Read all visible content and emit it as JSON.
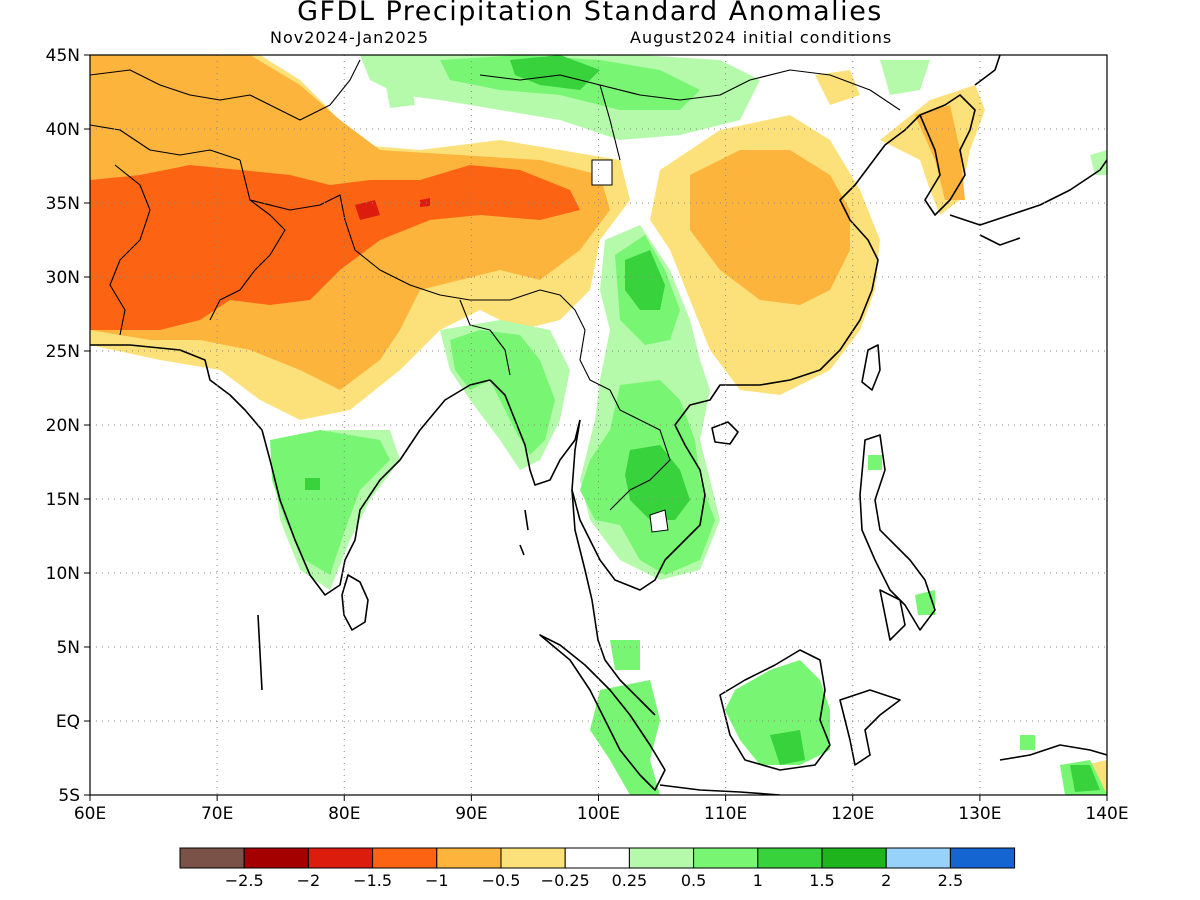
{
  "title": "GFDL Precipitation Standard Anomalies",
  "subtitle_left": "Nov2024-Jan2025",
  "subtitle_right": "August2024 initial conditions",
  "lat_labels": [
    "45N",
    "40N",
    "35N",
    "30N",
    "25N",
    "20N",
    "15N",
    "10N",
    "5N",
    "EQ",
    "5S"
  ],
  "lon_labels": [
    "60E",
    "70E",
    "80E",
    "90E",
    "100E",
    "110E",
    "120E",
    "130E",
    "140E"
  ],
  "legend": {
    "colors": [
      "#7a5248",
      "#a40000",
      "#dc1c0c",
      "#fc6414",
      "#fcb43c",
      "#fce17a",
      "#ffffff",
      "#b4faaa",
      "#78f573",
      "#37d23c",
      "#1eb41e",
      "#96d2fa",
      "#1464d2"
    ],
    "labels": [
      "-2.5",
      "-2",
      "-1.5",
      "-1",
      "-0.5",
      "-0.25",
      "0.25",
      "0.5",
      "1",
      "1.5",
      "2",
      "2.5"
    ]
  }
}
